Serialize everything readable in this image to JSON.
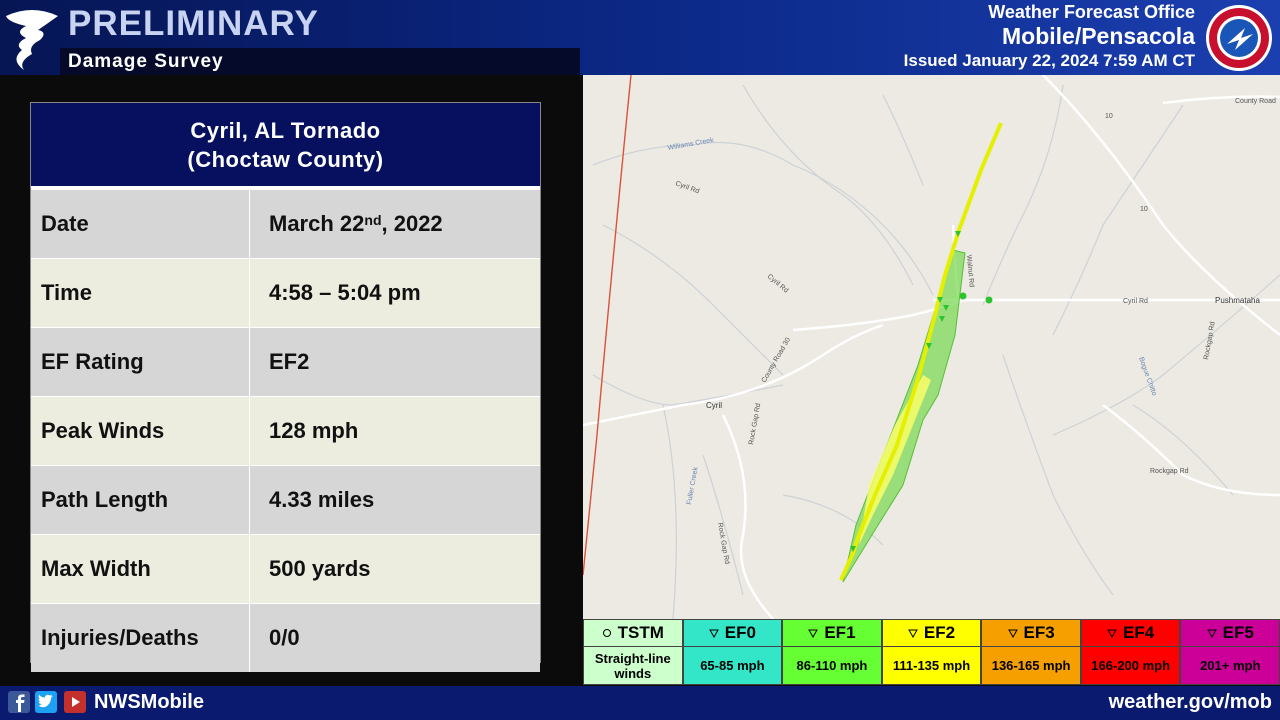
{
  "header": {
    "title": "PRELIMINARY",
    "subtitle": "Damage Survey",
    "office": "Weather Forecast Office",
    "location": "Mobile/Pensacola",
    "issued": "Issued January 22, 2024 7:59 AM CT"
  },
  "table": {
    "title": [
      "Cyril, AL Tornado",
      "(Choctaw County)"
    ],
    "rows": [
      {
        "label": "Date",
        "value": [
          "March 22",
          "nd",
          ", 2022"
        ]
      },
      {
        "label": "Time",
        "value": [
          "4:58 – 5:04 pm"
        ]
      },
      {
        "label": "EF Rating",
        "value": [
          "EF2"
        ]
      },
      {
        "label": "Peak Winds",
        "value": [
          "128 mph"
        ]
      },
      {
        "label": "Path Length",
        "value": [
          "4.33 miles"
        ]
      },
      {
        "label": "Max Width",
        "value": [
          "500 yards"
        ]
      },
      {
        "label": "Injuries/Deaths",
        "value": [
          "0/0"
        ]
      }
    ]
  },
  "map": {
    "labels": [
      "County Road",
      "10",
      "10",
      "Williams Creek",
      "Cyril Rd",
      "Cyril Rd",
      "Walnut Rd",
      "Cyril Rd",
      "Pushmataha",
      "County Road 30",
      "Cyril",
      "Bogue Chitto",
      "Rockgap Rd",
      "Rock Gap Rd",
      "Rockgap Rd",
      "Fuller Creek",
      "Rock Gap Rd"
    ]
  },
  "legend": [
    {
      "name": "TSTM",
      "desc": "Straight-line winds",
      "color": "#ccffcc"
    },
    {
      "name": "EF0",
      "desc": "65-85 mph",
      "color": "#33e6c8"
    },
    {
      "name": "EF1",
      "desc": "86-110 mph",
      "color": "#66ff33"
    },
    {
      "name": "EF2",
      "desc": "111-135 mph",
      "color": "#ffff00"
    },
    {
      "name": "EF3",
      "desc": "136-165 mph",
      "color": "#f5a000"
    },
    {
      "name": "EF4",
      "desc": "166-200 mph",
      "color": "#ff0000"
    },
    {
      "name": "EF5",
      "desc": "201+ mph",
      "color": "#cc0099"
    }
  ],
  "footer": {
    "social": "NWSMobile",
    "url": "weather.gov/mob"
  }
}
